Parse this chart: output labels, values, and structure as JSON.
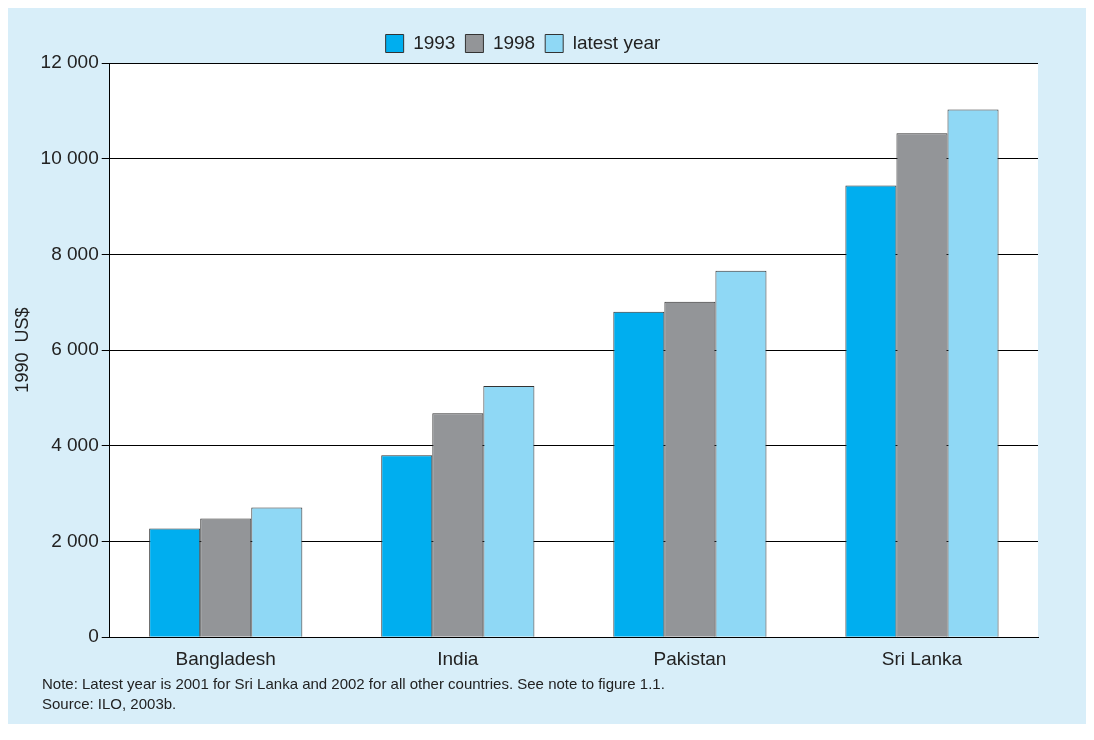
{
  "chart_data": {
    "type": "bar",
    "ylabel": "1990  US$",
    "categories": [
      "Bangladesh",
      "India",
      "Pakistan",
      "Sri Lanka"
    ],
    "series": [
      {
        "name": "1993",
        "color": "#00aeef",
        "values": [
          2270,
          3800,
          6800,
          9440
        ]
      },
      {
        "name": "1998",
        "color": "#939598",
        "values": [
          2480,
          4680,
          7010,
          10530
        ]
      },
      {
        "name": "latest year",
        "color": "#8fd8f5",
        "values": [
          2710,
          5250,
          7660,
          11030
        ]
      }
    ],
    "ylim": [
      0,
      12000
    ],
    "yticks": [
      0,
      {
        "value": 2000,
        "label": "2 000"
      },
      {
        "value": 4000,
        "label": "4 000"
      },
      {
        "value": 6000,
        "label": "6 000"
      },
      {
        "value": 8000,
        "label": "8 000"
      },
      {
        "value": 10000,
        "label": "10 000"
      },
      {
        "value": 12000,
        "label": "12 000"
      }
    ],
    "grid": "y",
    "legend": "top",
    "annotations": [
      "Note: Latest year is 2001 for Sri Lanka and 2002 for all other countries. See note to figure 1.1.",
      "Source: ILO, 2003b."
    ]
  }
}
